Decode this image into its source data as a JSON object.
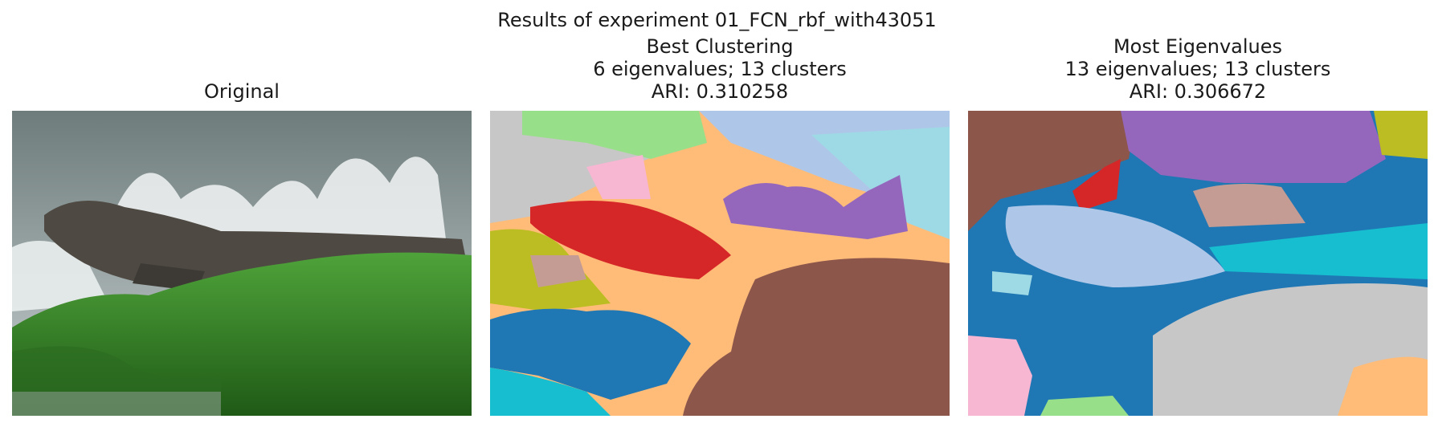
{
  "figure": {
    "suptitle": "Results of experiment 01_FCN_rbf_with43051",
    "panels": [
      {
        "id": "original",
        "title_lines": [
          "Original"
        ]
      },
      {
        "id": "best",
        "title_lines": [
          "Best Clustering",
          "6 eigenvalues; 13 clusters",
          "ARI: 0.310258"
        ]
      },
      {
        "id": "most",
        "title_lines": [
          "Most Eigenvalues",
          "13 eigenvalues; 13 clusters",
          "ARI: 0.306672"
        ]
      }
    ]
  },
  "colors": {
    "tab_blue": "#1f77b4",
    "tab_lightblue": "#aec7e8",
    "tab_orange_light": "#ffbb78",
    "tab_green_light": "#98df8a",
    "tab_red": "#d62728",
    "tab_purple": "#9467bd",
    "tab_tan": "#c49c94",
    "tab_brown": "#8c564b",
    "tab_pink": "#f7b6d2",
    "tab_gray": "#c7c7c7",
    "tab_olive": "#bcbd22",
    "tab_cyan": "#17becf",
    "tab_lightcyan": "#9edae5",
    "moss_green": "#3a8f2a",
    "water_gray": "#8a9594"
  }
}
